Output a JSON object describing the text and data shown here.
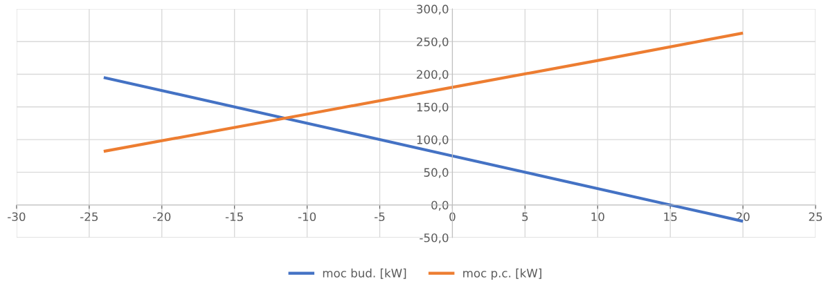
{
  "chart_data": {
    "type": "line",
    "series": [
      {
        "name": "moc bud. [kW]",
        "color": "#4472c4",
        "x": [
          -24,
          -12,
          0,
          15,
          20
        ],
        "values": [
          195,
          135,
          75,
          0,
          -25
        ]
      },
      {
        "name": "moc p.c. [kW]",
        "color": "#ed7d31",
        "x": [
          -24,
          -10,
          0,
          10,
          20
        ],
        "values": [
          82,
          139,
          180,
          221,
          263
        ]
      }
    ],
    "xlim": [
      -30,
      25
    ],
    "xticks": [
      -30,
      -25,
      -20,
      -15,
      -10,
      -5,
      0,
      5,
      10,
      15,
      20,
      25
    ],
    "ylim": [
      -50,
      300
    ],
    "yticks": [
      {
        "value": -50,
        "label": "-50,0"
      },
      {
        "value": 0,
        "label": "0,0"
      },
      {
        "value": 50,
        "label": "50,0"
      },
      {
        "value": 100,
        "label": "100,0"
      },
      {
        "value": 150,
        "label": "150,0"
      },
      {
        "value": 200,
        "label": "200,0"
      },
      {
        "value": 250,
        "label": "250,0"
      },
      {
        "value": 300,
        "label": "300,0"
      }
    ],
    "grid": true,
    "legend": "bottom",
    "marker": "none",
    "line_style": "solid"
  }
}
